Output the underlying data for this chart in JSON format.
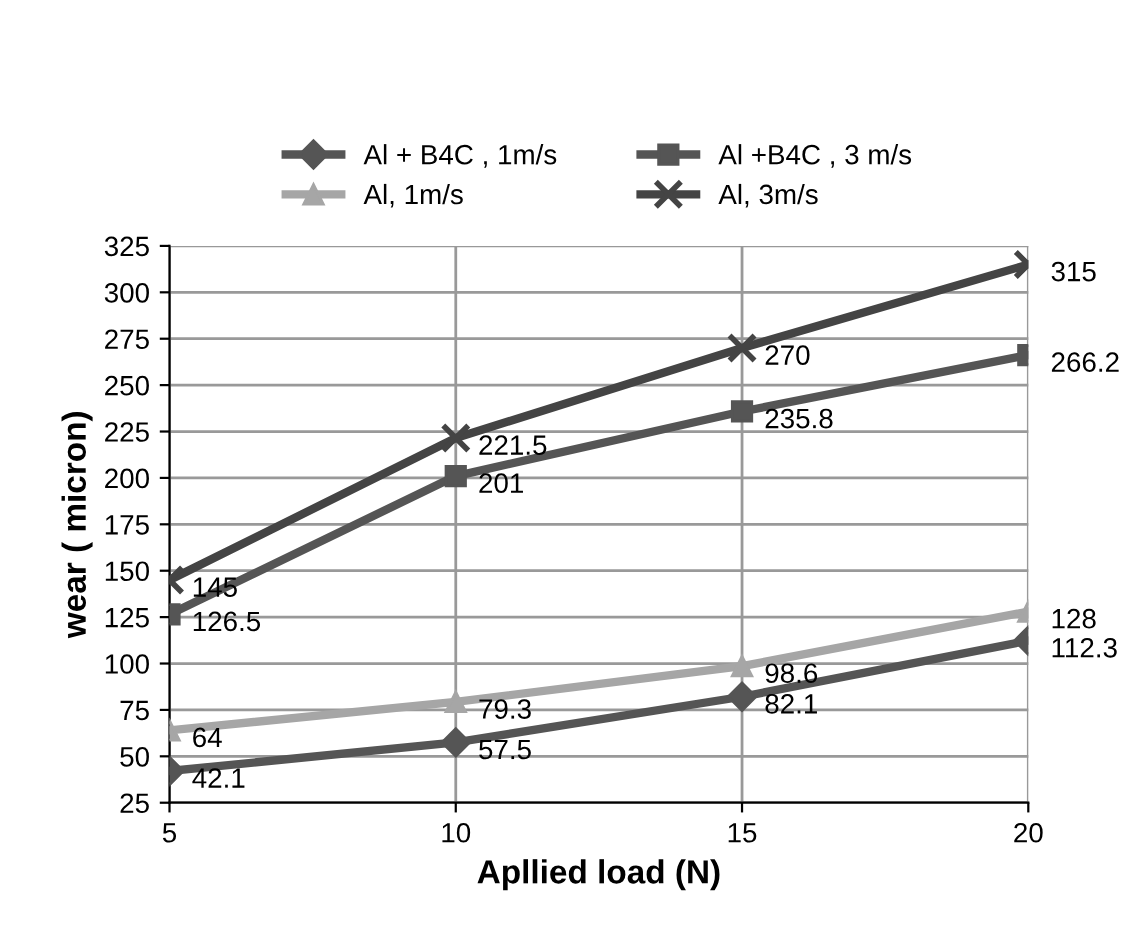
{
  "chart_data": {
    "type": "line",
    "xlabel": "Apllied load (N)",
    "ylabel": "wear ( micron)",
    "categories": [
      "5",
      "10",
      "15",
      "20"
    ],
    "series": [
      {
        "name": "Al + B4C , 1m/s",
        "color": "#555555",
        "marker": "diamond",
        "values": [
          42.1,
          57.5,
          82.1,
          112.3
        ]
      },
      {
        "name": "Al, 1m/s",
        "color": "#a6a6a6",
        "marker": "triangle",
        "values": [
          64,
          79.3,
          98.6,
          128
        ]
      },
      {
        "name": "Al +B4C , 3 m/s",
        "color": "#555555",
        "marker": "square",
        "values": [
          126.5,
          201,
          235.8,
          266.2
        ]
      },
      {
        "name": "Al, 3m/s",
        "color": "#444444",
        "marker": "cross",
        "values": [
          145,
          221.5,
          270,
          315
        ]
      }
    ],
    "ylim": [
      25,
      325
    ],
    "yticks": [
      25,
      50,
      75,
      100,
      125,
      150,
      175,
      200,
      225,
      250,
      275,
      300,
      325
    ],
    "grid": true,
    "legend": "top",
    "data_labels": true,
    "line_style": "solid"
  }
}
